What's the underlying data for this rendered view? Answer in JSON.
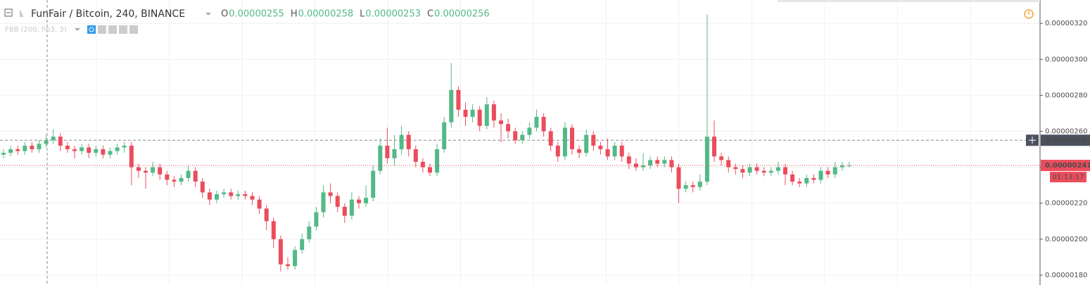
{
  "chart_data": {
    "type": "candlestick",
    "title": "FunFair / Bitcoin, 240, BINANCE",
    "ohlc_legend": [
      {
        "key": "O",
        "text": "0.00000255"
      },
      {
        "key": "H",
        "text": "0.00000258"
      },
      {
        "key": "L",
        "text": "0.00000253"
      },
      {
        "key": "C",
        "text": "0.00000256"
      }
    ],
    "indicator": "FBB (200, fib3, 3)",
    "up_color": "#53b987",
    "down_color": "#eb4d5c",
    "ylim": [
      1.745e-06,
      3.33e-06
    ],
    "yticks": [
      {
        "value": 1.8e-06,
        "label": "0.00000180"
      },
      {
        "value": 2e-06,
        "label": "0.00000200"
      },
      {
        "value": 2.2e-06,
        "label": "0.00000220"
      },
      {
        "value": 2.4e-06,
        "label": "0.00000240"
      },
      {
        "value": 2.6e-06,
        "label": "0.00000260"
      },
      {
        "value": 2.8e-06,
        "label": "0.00000280"
      },
      {
        "value": 3e-06,
        "label": "0.00000300"
      },
      {
        "value": 3.2e-06,
        "label": "0.00000320"
      }
    ],
    "crosshair_price": {
      "value": 2.55e-06,
      "label": "0.00000255"
    },
    "last_price": {
      "value": 2.41e-06,
      "label": "0.00000241"
    },
    "countdown": "01:13:17",
    "series": [
      {
        "open": [
          2.47e-06,
          2.48e-06,
          2.5e-06,
          2.49e-06,
          2.52e-06,
          2.5e-06,
          2.53e-06,
          2.55e-06,
          2.57e-06,
          2.52e-06,
          2.5e-06,
          2.49e-06,
          2.51e-06,
          2.48e-06,
          2.5e-06,
          2.47e-06,
          2.49e-06,
          2.51e-06,
          2.52e-06,
          2.4e-06,
          2.38e-06,
          2.37e-06,
          2.4e-06,
          2.36e-06,
          2.33e-06,
          2.32e-06,
          2.34e-06,
          2.38e-06,
          2.32e-06,
          2.26e-06,
          2.22e-06,
          2.25e-06,
          2.26e-06,
          2.24e-06,
          2.25e-06,
          2.24e-06,
          2.22e-06,
          2.17e-06,
          2.1e-06,
          2e-06,
          1.86e-06,
          1.85e-06,
          1.94e-06,
          2e-06,
          2.07e-06,
          2.15e-06,
          2.26e-06,
          2.24e-06,
          2.18e-06,
          2.13e-06,
          2.22e-06,
          2.2e-06,
          2.23e-06,
          2.38e-06,
          2.52e-06,
          2.45e-06,
          2.5e-06,
          2.58e-06,
          2.5e-06,
          2.43e-06,
          2.4e-06,
          2.37e-06,
          2.5e-06,
          2.65e-06,
          2.83e-06,
          2.72e-06,
          2.68e-06,
          2.72e-06,
          2.63e-06,
          2.75e-06,
          2.66e-06,
          2.64e-06,
          2.6e-06,
          2.55e-06,
          2.58e-06,
          2.62e-06,
          2.68e-06,
          2.6e-06,
          2.52e-06,
          2.46e-06,
          2.62e-06,
          2.5e-06,
          2.48e-06,
          2.58e-06,
          2.52e-06,
          2.5e-06,
          2.46e-06,
          2.52e-06,
          2.46e-06,
          2.42e-06,
          2.4e-06,
          2.41e-06,
          2.44e-06,
          2.42e-06,
          2.44e-06,
          2.4e-06,
          2.28e-06,
          2.3e-06,
          2.29e-06,
          2.32e-06,
          2.57e-06,
          2.46e-06,
          2.44e-06,
          2.4e-06,
          2.39e-06,
          2.37e-06,
          2.4e-06,
          2.38e-06,
          2.37e-06,
          2.38e-06,
          2.4e-06,
          2.36e-06,
          2.32e-06,
          2.31e-06,
          2.34e-06,
          2.33e-06,
          2.38e-06,
          2.36e-06,
          2.4e-06,
          2.41e-06
        ],
        "high": [
          2.5e-06,
          2.52e-06,
          2.52e-06,
          2.54e-06,
          2.54e-06,
          2.55e-06,
          2.58e-06,
          2.61e-06,
          2.59e-06,
          2.54e-06,
          2.52e-06,
          2.53e-06,
          2.53e-06,
          2.52e-06,
          2.52e-06,
          2.51e-06,
          2.53e-06,
          2.54e-06,
          2.54e-06,
          2.42e-06,
          2.4e-06,
          2.43e-06,
          2.42e-06,
          2.38e-06,
          2.35e-06,
          2.36e-06,
          2.41e-06,
          2.4e-06,
          2.34e-06,
          2.28e-06,
          2.27e-06,
          2.28e-06,
          2.28e-06,
          2.27e-06,
          2.27e-06,
          2.26e-06,
          2.24e-06,
          2.19e-06,
          2.12e-06,
          2.02e-06,
          1.9e-06,
          1.96e-06,
          2.03e-06,
          2.1e-06,
          2.18e-06,
          2.3e-06,
          2.31e-06,
          2.26e-06,
          2.2e-06,
          2.26e-06,
          2.24e-06,
          2.3e-06,
          2.41e-06,
          2.56e-06,
          2.62e-06,
          2.58e-06,
          2.63e-06,
          2.6e-06,
          2.52e-06,
          2.45e-06,
          2.42e-06,
          2.53e-06,
          2.68e-06,
          2.98e-06,
          2.85e-06,
          2.76e-06,
          2.75e-06,
          2.74e-06,
          2.79e-06,
          2.77e-06,
          2.7e-06,
          2.67e-06,
          2.62e-06,
          2.6e-06,
          2.65e-06,
          2.72e-06,
          2.7e-06,
          2.62e-06,
          2.54e-06,
          2.65e-06,
          2.64e-06,
          2.52e-06,
          2.61e-06,
          2.6e-06,
          2.54e-06,
          2.56e-06,
          2.54e-06,
          2.54e-06,
          2.48e-06,
          2.45e-06,
          2.48e-06,
          2.46e-06,
          2.46e-06,
          2.46e-06,
          2.46e-06,
          2.42e-06,
          2.32e-06,
          2.32e-06,
          2.36e-06,
          3.25e-06,
          2.66e-06,
          2.48e-06,
          2.46e-06,
          2.42e-06,
          2.41e-06,
          2.42e-06,
          2.42e-06,
          2.4e-06,
          2.4e-06,
          2.43e-06,
          2.42e-06,
          2.38e-06,
          2.34e-06,
          2.36e-06,
          2.36e-06,
          2.4e-06,
          2.4e-06,
          2.43e-06,
          2.43e-06,
          2.43e-06
        ],
        "low": [
          2.45e-06,
          2.46e-06,
          2.47e-06,
          2.47e-06,
          2.48e-06,
          2.48e-06,
          2.51e-06,
          2.53e-06,
          2.49e-06,
          2.48e-06,
          2.45e-06,
          2.47e-06,
          2.45e-06,
          2.46e-06,
          2.45e-06,
          2.45e-06,
          2.47e-06,
          2.48e-06,
          2.3e-06,
          2.34e-06,
          2.28e-06,
          2.35e-06,
          2.33e-06,
          2.3e-06,
          2.29e-06,
          2.3e-06,
          2.32e-06,
          2.29e-06,
          2.23e-06,
          2.19e-06,
          2.2e-06,
          2.23e-06,
          2.22e-06,
          2.22e-06,
          2.22e-06,
          2.19e-06,
          2.14e-06,
          2.05e-06,
          1.95e-06,
          1.82e-06,
          1.83e-06,
          1.83e-06,
          1.92e-06,
          1.98e-06,
          2.05e-06,
          2.12e-06,
          2.2e-06,
          2.15e-06,
          2.09e-06,
          2.11e-06,
          2.17e-06,
          2.18e-06,
          2.21e-06,
          2.36e-06,
          2.42e-06,
          2.41e-06,
          2.47e-06,
          2.46e-06,
          2.4e-06,
          2.37e-06,
          2.35e-06,
          2.35e-06,
          2.48e-06,
          2.62e-06,
          2.68e-06,
          2.63e-06,
          2.65e-06,
          2.6e-06,
          2.61e-06,
          2.62e-06,
          2.54e-06,
          2.56e-06,
          2.53e-06,
          2.53e-06,
          2.56e-06,
          2.6e-06,
          2.57e-06,
          2.49e-06,
          2.43e-06,
          2.44e-06,
          2.47e-06,
          2.45e-06,
          2.46e-06,
          2.49e-06,
          2.47e-06,
          2.44e-06,
          2.44e-06,
          2.43e-06,
          2.39e-06,
          2.38e-06,
          2.38e-06,
          2.39e-06,
          2.4e-06,
          2.4e-06,
          2.37e-06,
          2.2e-06,
          2.26e-06,
          2.26e-06,
          2.27e-06,
          2.3e-06,
          2.43e-06,
          2.41e-06,
          2.37e-06,
          2.36e-06,
          2.34e-06,
          2.35e-06,
          2.36e-06,
          2.35e-06,
          2.35e-06,
          2.36e-06,
          2.3e-06,
          2.3e-06,
          2.29e-06,
          2.29e-06,
          2.31e-06,
          2.31e-06,
          2.34e-06,
          2.34e-06,
          2.38e-06,
          2.4e-06
        ],
        "close": [
          2.48e-06,
          2.5e-06,
          2.49e-06,
          2.52e-06,
          2.5e-06,
          2.53e-06,
          2.55e-06,
          2.57e-06,
          2.52e-06,
          2.5e-06,
          2.49e-06,
          2.51e-06,
          2.48e-06,
          2.5e-06,
          2.47e-06,
          2.49e-06,
          2.51e-06,
          2.52e-06,
          2.4e-06,
          2.38e-06,
          2.37e-06,
          2.4e-06,
          2.36e-06,
          2.33e-06,
          2.32e-06,
          2.34e-06,
          2.38e-06,
          2.32e-06,
          2.26e-06,
          2.22e-06,
          2.25e-06,
          2.26e-06,
          2.24e-06,
          2.25e-06,
          2.24e-06,
          2.22e-06,
          2.17e-06,
          2.1e-06,
          2e-06,
          1.86e-06,
          1.85e-06,
          1.94e-06,
          2e-06,
          2.07e-06,
          2.15e-06,
          2.26e-06,
          2.24e-06,
          2.18e-06,
          2.13e-06,
          2.22e-06,
          2.2e-06,
          2.23e-06,
          2.38e-06,
          2.52e-06,
          2.45e-06,
          2.5e-06,
          2.58e-06,
          2.5e-06,
          2.43e-06,
          2.4e-06,
          2.37e-06,
          2.5e-06,
          2.65e-06,
          2.83e-06,
          2.72e-06,
          2.68e-06,
          2.72e-06,
          2.63e-06,
          2.75e-06,
          2.66e-06,
          2.64e-06,
          2.6e-06,
          2.55e-06,
          2.58e-06,
          2.62e-06,
          2.68e-06,
          2.6e-06,
          2.52e-06,
          2.46e-06,
          2.62e-06,
          2.5e-06,
          2.48e-06,
          2.58e-06,
          2.52e-06,
          2.5e-06,
          2.46e-06,
          2.52e-06,
          2.46e-06,
          2.42e-06,
          2.4e-06,
          2.41e-06,
          2.44e-06,
          2.42e-06,
          2.44e-06,
          2.4e-06,
          2.28e-06,
          2.3e-06,
          2.29e-06,
          2.32e-06,
          2.57e-06,
          2.46e-06,
          2.44e-06,
          2.4e-06,
          2.39e-06,
          2.37e-06,
          2.4e-06,
          2.38e-06,
          2.37e-06,
          2.38e-06,
          2.4e-06,
          2.36e-06,
          2.32e-06,
          2.31e-06,
          2.34e-06,
          2.33e-06,
          2.38e-06,
          2.36e-06,
          2.4e-06,
          2.41e-06,
          2.41e-06
        ]
      }
    ]
  }
}
